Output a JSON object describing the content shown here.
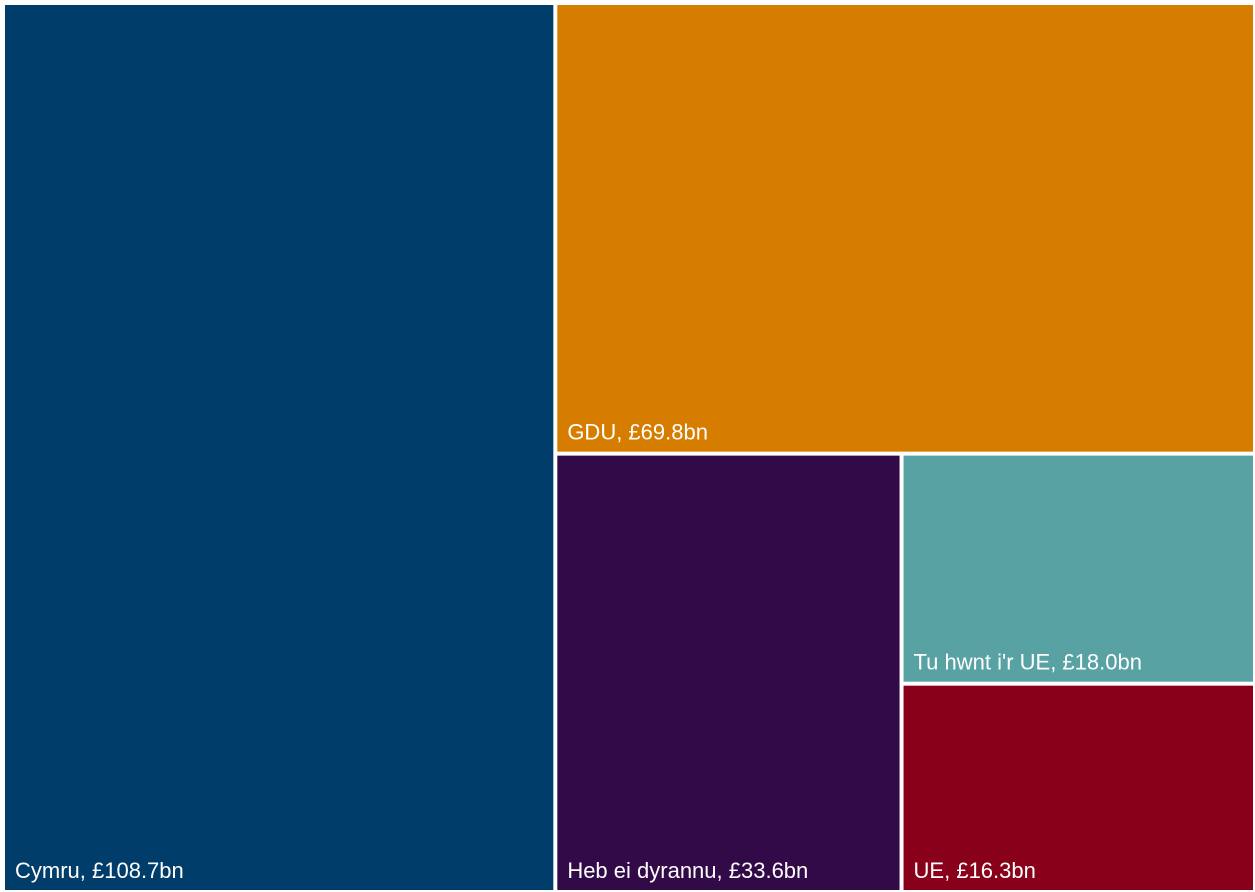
{
  "chart_data": {
    "type": "treemap",
    "categories": [
      "Cymru",
      "GDU",
      "Heb ei dyrannu",
      "Tu hwnt i'r UE",
      "UE"
    ],
    "values": [
      108.7,
      69.8,
      33.6,
      18.0,
      16.3
    ],
    "value_labels": [
      "Cymru, £108.7bn",
      "GDU, £69.8bn",
      "Heb ei dyrannu, £33.6bn",
      "Tu hwnt i'r UE, £18.0bn",
      "UE, £16.3bn"
    ],
    "colors": [
      "#003d6b",
      "#d67d00",
      "#330a48",
      "#58a2a4",
      "#880019"
    ]
  }
}
